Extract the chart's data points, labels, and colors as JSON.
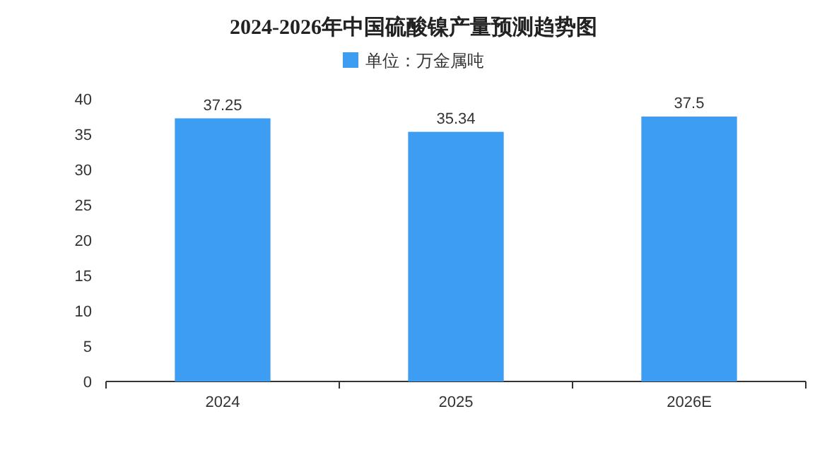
{
  "chart_data": {
    "type": "bar",
    "title": "2024-2026年中国硫酸镍产量预测趋势图",
    "categories": [
      "2024",
      "2025",
      "2026E"
    ],
    "series": [
      {
        "name": "单位：万金属吨",
        "color": "#3d9df2",
        "values": [
          37.25,
          35.34,
          37.5
        ]
      }
    ],
    "ylim": [
      0,
      40
    ],
    "yticks": [
      0,
      5,
      10,
      15,
      20,
      25,
      30,
      35,
      40
    ],
    "data_labels": true,
    "legend": "top",
    "grid": false
  }
}
